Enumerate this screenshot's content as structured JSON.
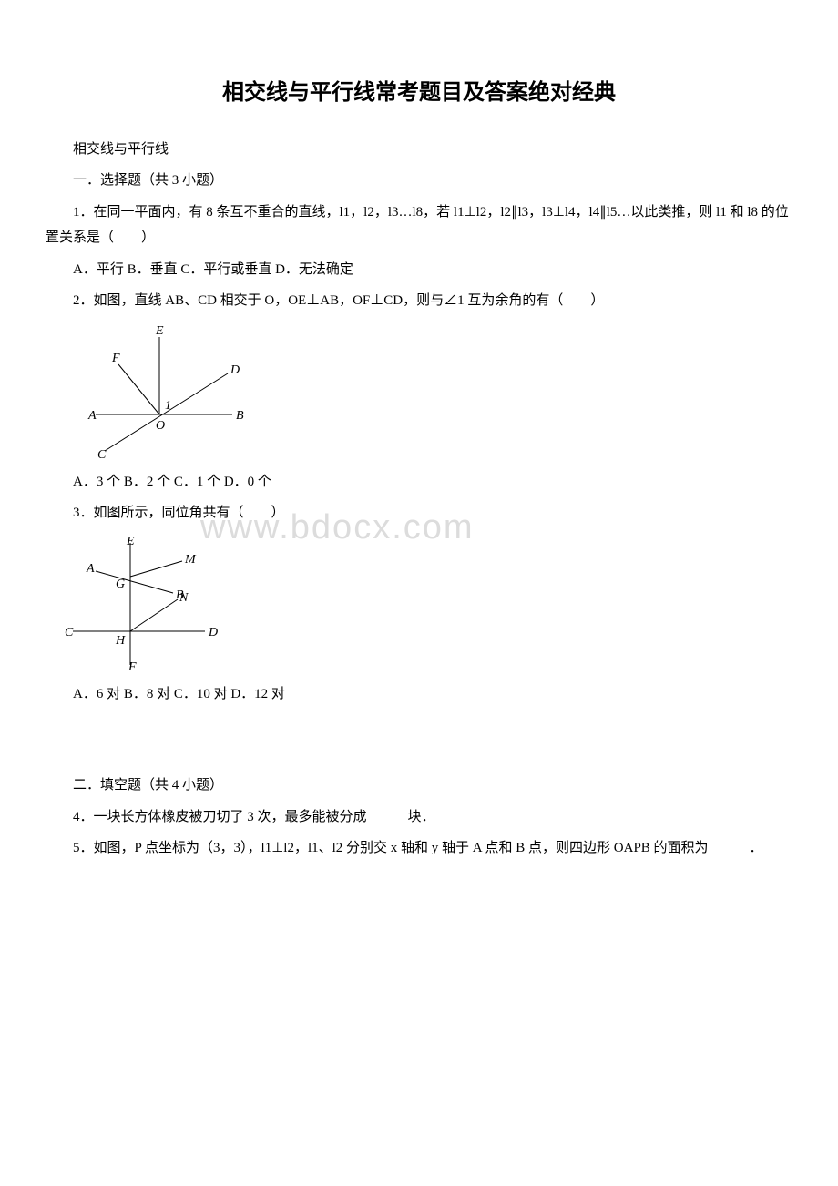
{
  "title": "相交线与平行线常考题目及答案绝对经典",
  "p1": "相交线与平行线",
  "p2": "一．选择题（共 3 小题）",
  "q1": "1．在同一平面内，有 8 条互不重合的直线，l1，l2，l3…l8，若 l1⊥l2，l2∥l3，l3⊥l4，l4∥l5…以此类推，则 l1 和 l8 的位置关系是（　　）",
  "q1opts": "A．平行 B．垂直 C．平行或垂直 D．无法确定",
  "q2": "2．如图，直线 AB、CD 相交于 O，OE⊥AB，OF⊥CD，则与∠1 互为余角的有（　　）",
  "q2opts": "A．3 个 B．2 个 C．1 个 D．0 个",
  "q3": "3．如图所示，同位角共有（　　）",
  "q3opts": "A．6 对 B．8 对 C．10 对 D．12 对",
  "p3": "二．填空题（共 4 小题）",
  "q4": "4．一块长方体橡皮被刀切了 3 次，最多能被分成　　　块．",
  "q5": "5．如图，P 点坐标为（3，3），l1⊥l2，l1、l2 分别交 x 轴和 y 轴于 A 点和 B 点，则四边形 OAPB 的面积为　　　．",
  "watermark": "www.bdocx.com",
  "fig1": {
    "labels": {
      "A": "A",
      "B": "B",
      "C": "C",
      "D": "D",
      "E": "E",
      "F": "F",
      "O": "O",
      "one": "1"
    },
    "stroke": "#000000",
    "fontsize": 14,
    "fontfamily": "Times, serif",
    "fontstyle": "italic"
  },
  "fig2": {
    "labels": {
      "A": "A",
      "B": "B",
      "C": "C",
      "D": "D",
      "E": "E",
      "F": "F",
      "G": "G",
      "H": "H",
      "M": "M",
      "N": "N"
    },
    "stroke": "#000000",
    "fontsize": 14,
    "fontfamily": "Times, serif",
    "fontstyle": "italic"
  }
}
